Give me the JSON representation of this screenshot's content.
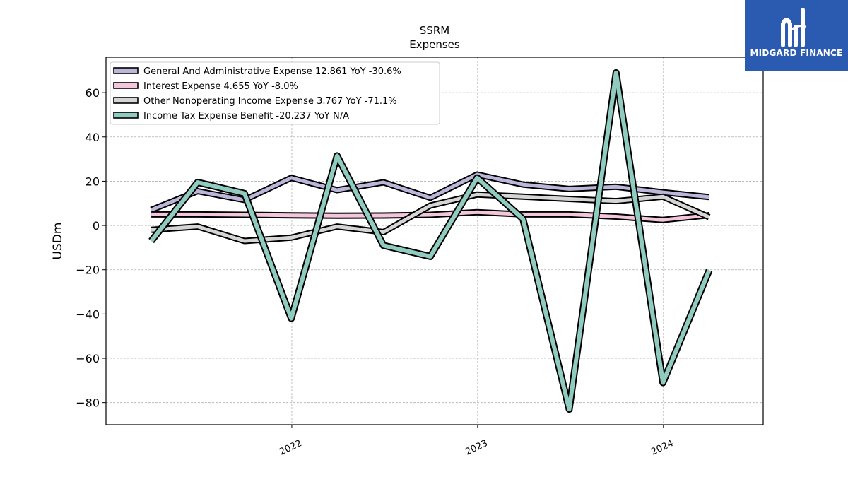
{
  "title": "SSRM",
  "subtitle": "Expenses",
  "logo": {
    "text": "MIDGARD FINANCE"
  },
  "colors": {
    "background": "#ffffff",
    "grid": "#b0b0b0",
    "axis": "#000000",
    "logo_bg": "#2b5bb0"
  },
  "chart_data": {
    "type": "line",
    "title": "SSRM",
    "subtitle": "Expenses",
    "xlabel": "",
    "ylabel": "USDm",
    "ylim": [
      -90,
      76
    ],
    "xlim": [
      "2021-01-01",
      "2024-07-15"
    ],
    "yticks": [
      -80,
      -60,
      -40,
      -20,
      0,
      20,
      40,
      60
    ],
    "xticks": [
      "2022",
      "2023",
      "2024"
    ],
    "grid": true,
    "legend_position": "top-left",
    "x": [
      "2021-03-31",
      "2021-06-30",
      "2021-09-30",
      "2021-12-31",
      "2022-03-31",
      "2022-06-30",
      "2022-09-30",
      "2022-12-31",
      "2023-03-31",
      "2023-06-30",
      "2023-09-30",
      "2023-12-31",
      "2024-03-31"
    ],
    "series": [
      {
        "name": "General And Administrative Expense",
        "legend_label": "General And Administrative Expense  12.861 YoY -30.6%",
        "color": "#bcb6da",
        "values": [
          7.0,
          15.5,
          11.5,
          21.5,
          16.0,
          19.5,
          12.5,
          23.0,
          18.5,
          16.5,
          17.5,
          15.0,
          12.861
        ]
      },
      {
        "name": "Interest Expense",
        "legend_label": "Interest Expense  4.655 YoY -8.0%",
        "color": "#f4c6dc",
        "values": [
          5.0,
          5.0,
          4.8,
          4.6,
          4.4,
          4.5,
          4.8,
          6.0,
          5.0,
          5.0,
          4.0,
          2.5,
          4.655
        ]
      },
      {
        "name": "Other Nonoperating Income Expense",
        "legend_label": "Other Nonoperating Income Expense  3.767 YoY -71.1%",
        "color": "#d5d5d5",
        "values": [
          -2.0,
          -0.5,
          -7.0,
          -5.5,
          -0.5,
          -3.0,
          9.0,
          14.0,
          13.0,
          12.0,
          11.0,
          13.0,
          3.767
        ]
      },
      {
        "name": "Income Tax Expense Benefit",
        "legend_label": "Income Tax Expense Benefit  -20.237 YoY N/A",
        "color": "#8fcbbf",
        "values": [
          -7.0,
          19.5,
          14.5,
          -42.0,
          31.5,
          -9.0,
          -14.0,
          21.5,
          3.0,
          -83.0,
          69.0,
          -71.0,
          -20.237
        ]
      }
    ]
  }
}
